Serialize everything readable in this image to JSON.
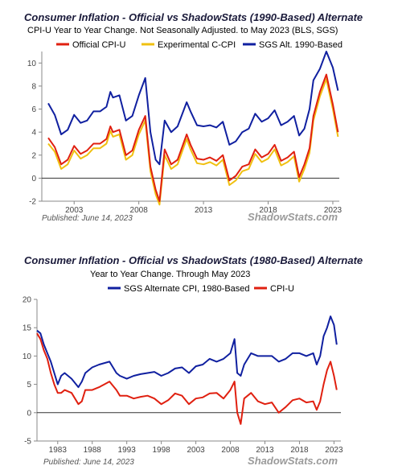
{
  "chart_data": [
    {
      "type": "line",
      "title": "Consumer Inflation - Official vs ShadowStats (1990-Based) Alternate",
      "subtitle": "CPI-U Year to Year Change. Not Seasonally Adjusted. to May 2023  (BLS, SGS)",
      "ylim": [
        -2,
        11
      ],
      "yticks": [
        -2,
        0,
        2,
        4,
        6,
        8,
        10
      ],
      "xlim": [
        2000.5,
        2023.5
      ],
      "xticks": [
        2003,
        2008,
        2013,
        2018,
        2023
      ],
      "xtick_labels": [
        "2003",
        "2008",
        "2013",
        "2018",
        "2023"
      ],
      "published": "Published: June 14, 2023",
      "brand": "ShadowStats.com",
      "grid": false,
      "legend_position": "top",
      "series": [
        {
          "name": "Official CPI-U",
          "color": "#e02010",
          "x": [
            2001.0,
            2001.5,
            2002.0,
            2002.5,
            2003.0,
            2003.5,
            2004.0,
            2004.5,
            2005.0,
            2005.5,
            2005.8,
            2006.0,
            2006.5,
            2007.0,
            2007.5,
            2008.0,
            2008.5,
            2008.9,
            2009.3,
            2009.6,
            2010.0,
            2010.5,
            2011.0,
            2011.7,
            2012.0,
            2012.5,
            2013.0,
            2013.5,
            2014.0,
            2014.5,
            2015.0,
            2015.5,
            2016.0,
            2016.5,
            2017.0,
            2017.5,
            2018.0,
            2018.5,
            2019.0,
            2019.5,
            2020.0,
            2020.4,
            2020.8,
            2021.2,
            2021.5,
            2022.0,
            2022.5,
            2023.0,
            2023.4
          ],
          "values": [
            3.5,
            2.7,
            1.2,
            1.6,
            2.8,
            2.1,
            2.4,
            3.0,
            3.0,
            3.4,
            4.5,
            4.0,
            4.2,
            2.0,
            2.4,
            4.2,
            5.4,
            1.0,
            -1.0,
            -2.0,
            2.5,
            1.2,
            1.6,
            3.8,
            2.9,
            1.7,
            1.6,
            1.8,
            1.5,
            2.0,
            -0.2,
            0.2,
            1.0,
            1.2,
            2.5,
            1.8,
            2.1,
            2.9,
            1.5,
            1.8,
            2.3,
            0.1,
            1.2,
            2.6,
            5.4,
            7.5,
            9.0,
            6.4,
            4.0
          ]
        },
        {
          "name": "Experimental C-CPI",
          "color": "#f0c010",
          "x": [
            2001.0,
            2001.5,
            2002.0,
            2002.5,
            2003.0,
            2003.5,
            2004.0,
            2004.5,
            2005.0,
            2005.5,
            2005.8,
            2006.0,
            2006.5,
            2007.0,
            2007.5,
            2008.0,
            2008.5,
            2008.9,
            2009.3,
            2009.6,
            2010.0,
            2010.5,
            2011.0,
            2011.7,
            2012.0,
            2012.5,
            2013.0,
            2013.5,
            2014.0,
            2014.5,
            2015.0,
            2015.5,
            2016.0,
            2016.5,
            2017.0,
            2017.5,
            2018.0,
            2018.5,
            2019.0,
            2019.5,
            2020.0,
            2020.4,
            2020.8,
            2021.2,
            2021.5,
            2022.0,
            2022.5,
            2023.0,
            2023.4
          ],
          "values": [
            3.0,
            2.3,
            0.8,
            1.2,
            2.4,
            1.7,
            2.0,
            2.6,
            2.6,
            3.0,
            4.1,
            3.6,
            3.8,
            1.6,
            2.0,
            3.8,
            5.0,
            0.6,
            -1.4,
            -2.3,
            2.0,
            0.8,
            1.2,
            3.4,
            2.5,
            1.3,
            1.2,
            1.4,
            1.1,
            1.6,
            -0.6,
            -0.2,
            0.6,
            0.8,
            2.1,
            1.4,
            1.7,
            2.5,
            1.1,
            1.4,
            1.9,
            -0.3,
            0.8,
            2.2,
            5.0,
            7.1,
            8.6,
            6.0,
            3.6
          ]
        },
        {
          "name": "SGS  Alt. 1990-Based",
          "color": "#1020a0",
          "x": [
            2001.0,
            2001.5,
            2002.0,
            2002.5,
            2003.0,
            2003.5,
            2004.0,
            2004.5,
            2005.0,
            2005.5,
            2005.8,
            2006.0,
            2006.5,
            2007.0,
            2007.5,
            2008.0,
            2008.5,
            2008.9,
            2009.3,
            2009.6,
            2010.0,
            2010.5,
            2011.0,
            2011.7,
            2012.0,
            2012.5,
            2013.0,
            2013.5,
            2014.0,
            2014.5,
            2015.0,
            2015.5,
            2016.0,
            2016.5,
            2017.0,
            2017.5,
            2018.0,
            2018.5,
            2019.0,
            2019.5,
            2020.0,
            2020.4,
            2020.8,
            2021.2,
            2021.5,
            2022.0,
            2022.5,
            2023.0,
            2023.4
          ],
          "values": [
            6.5,
            5.5,
            3.8,
            4.2,
            5.5,
            4.8,
            5.0,
            5.8,
            5.8,
            6.2,
            7.5,
            7.0,
            7.2,
            5.0,
            5.4,
            7.2,
            8.7,
            4.0,
            1.6,
            1.2,
            5.0,
            4.0,
            4.5,
            6.6,
            5.8,
            4.6,
            4.5,
            4.6,
            4.4,
            4.9,
            2.9,
            3.2,
            4.0,
            4.3,
            5.6,
            4.9,
            5.2,
            5.9,
            4.6,
            4.9,
            5.4,
            3.7,
            4.3,
            6.0,
            8.5,
            9.5,
            11.0,
            9.6,
            7.6
          ]
        }
      ]
    },
    {
      "type": "line",
      "title": "Consumer Inflation - Official vs ShadowStats (1980-Based) Alternate",
      "subtitle": "Year to Year Change. Through May 2023",
      "ylim": [
        -5,
        20
      ],
      "yticks": [
        -5,
        0,
        5,
        10,
        15,
        20
      ],
      "xlim": [
        1980.0,
        2024.0
      ],
      "xticks": [
        1983,
        1988,
        1993,
        1998,
        2003,
        2008,
        2013,
        2018,
        2023
      ],
      "xtick_labels": [
        "1983",
        "1988",
        "1993",
        "1998",
        "2003",
        "2008",
        "2013",
        "2018",
        "2023"
      ],
      "published": "Published: June 14, 2023",
      "brand": "ShadowStats.com",
      "grid": false,
      "legend_position": "top",
      "series": [
        {
          "name": "SGS Alternate CPI, 1980-Based",
          "color": "#1020a0",
          "x": [
            1980.0,
            1980.5,
            1981.0,
            1981.5,
            1982.0,
            1982.5,
            1983.0,
            1983.5,
            1984.0,
            1985.0,
            1986.0,
            1986.5,
            1987.0,
            1988.0,
            1989.0,
            1990.5,
            1991.5,
            1992.0,
            1993.0,
            1994.0,
            1995.0,
            1996.0,
            1997.0,
            1998.0,
            1999.0,
            2000.0,
            2001.0,
            2002.0,
            2003.0,
            2004.0,
            2005.0,
            2006.0,
            2007.0,
            2008.0,
            2008.6,
            2009.0,
            2009.5,
            2010.0,
            2011.0,
            2012.0,
            2013.0,
            2014.0,
            2015.0,
            2016.0,
            2017.0,
            2018.0,
            2019.0,
            2020.0,
            2020.5,
            2021.0,
            2021.5,
            2022.0,
            2022.5,
            2023.0,
            2023.4
          ],
          "values": [
            14.5,
            14.0,
            12.0,
            10.5,
            9.0,
            7.0,
            5.0,
            6.5,
            7.0,
            6.0,
            4.5,
            5.5,
            7.0,
            8.0,
            8.5,
            9.0,
            7.0,
            6.5,
            6.0,
            6.5,
            6.8,
            7.0,
            7.2,
            6.5,
            7.0,
            7.8,
            8.0,
            7.0,
            8.2,
            8.5,
            9.5,
            9.0,
            9.5,
            10.5,
            13.0,
            7.0,
            6.5,
            8.5,
            10.5,
            10.0,
            10.0,
            10.0,
            9.0,
            9.5,
            10.5,
            10.5,
            10.0,
            10.5,
            8.5,
            10.0,
            13.5,
            15.0,
            17.0,
            15.5,
            12.0
          ]
        },
        {
          "name": "CPI-U",
          "color": "#e02010",
          "x": [
            1980.0,
            1980.5,
            1981.0,
            1981.5,
            1982.0,
            1982.5,
            1983.0,
            1983.5,
            1984.0,
            1985.0,
            1986.0,
            1986.5,
            1987.0,
            1988.0,
            1989.0,
            1990.5,
            1991.5,
            1992.0,
            1993.0,
            1994.0,
            1995.0,
            1996.0,
            1997.0,
            1998.0,
            1999.0,
            2000.0,
            2001.0,
            2002.0,
            2003.0,
            2004.0,
            2005.0,
            2006.0,
            2007.0,
            2008.0,
            2008.6,
            2009.0,
            2009.5,
            2010.0,
            2011.0,
            2012.0,
            2013.0,
            2014.0,
            2015.0,
            2016.0,
            2017.0,
            2018.0,
            2019.0,
            2020.0,
            2020.5,
            2021.0,
            2021.5,
            2022.0,
            2022.5,
            2023.0,
            2023.4
          ],
          "values": [
            14.0,
            13.0,
            11.0,
            9.5,
            7.0,
            5.0,
            3.5,
            3.5,
            4.0,
            3.5,
            1.5,
            2.0,
            4.0,
            4.0,
            4.5,
            5.5,
            4.0,
            3.0,
            3.0,
            2.5,
            2.8,
            3.0,
            2.5,
            1.5,
            2.2,
            3.4,
            3.0,
            1.5,
            2.5,
            2.7,
            3.4,
            3.5,
            2.5,
            4.0,
            5.5,
            0.0,
            -2.0,
            2.5,
            3.5,
            2.0,
            1.5,
            1.8,
            0.0,
            1.0,
            2.2,
            2.5,
            1.8,
            2.0,
            0.5,
            2.0,
            5.0,
            7.5,
            9.0,
            6.5,
            4.0
          ]
        }
      ]
    }
  ]
}
